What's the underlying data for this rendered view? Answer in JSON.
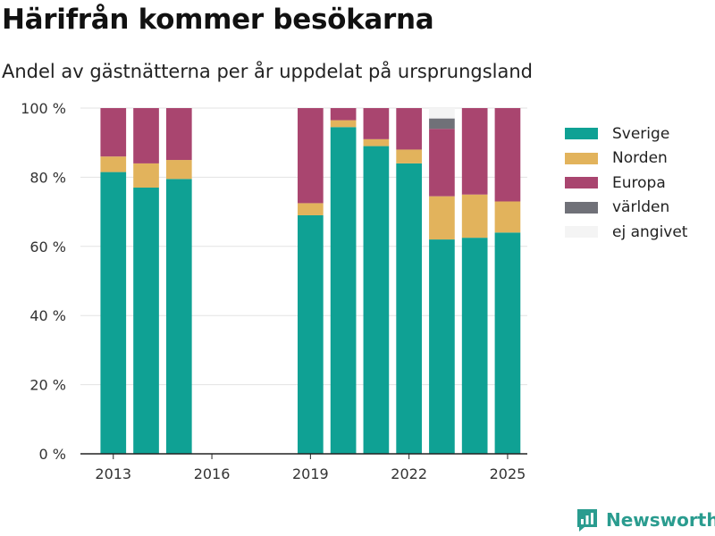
{
  "header": {
    "title": "Härifrån kommer besökarna",
    "subtitle": "Andel av gästnätterna per år uppdelat på ursprungsland"
  },
  "brand": {
    "name": "Newsworthy",
    "icon": "chart-logo-icon",
    "color": "#2a9c8f"
  },
  "chart_data": {
    "type": "bar",
    "stacked": true,
    "title": "Härifrån kommer besökarna",
    "subtitle": "Andel av gästnätterna per år uppdelat på ursprungsland",
    "xlabel": "",
    "ylabel": "",
    "xlim": [
      2012,
      2025.6
    ],
    "ylim": [
      0,
      100
    ],
    "grid": true,
    "legend_position": "right",
    "x_ticks": [
      2013,
      2016,
      2019,
      2022,
      2025
    ],
    "y_ticks": [
      0,
      20,
      40,
      60,
      80,
      100
    ],
    "y_tick_labels": [
      "0 %",
      "20 %",
      "40 %",
      "60 %",
      "80 %",
      "100 %"
    ],
    "x": [
      2013,
      2014,
      2015,
      2019,
      2020,
      2021,
      2022,
      2023,
      2024,
      2025
    ],
    "series": [
      {
        "name": "Sverige",
        "color": "#0fa194",
        "values": [
          81.5,
          77,
          79.5,
          69,
          94.5,
          89,
          84,
          62,
          62.5,
          64
        ]
      },
      {
        "name": "Norden",
        "color": "#e2b35c",
        "values": [
          4.5,
          7,
          5.5,
          3.5,
          2,
          2,
          4,
          12.5,
          12.5,
          9
        ]
      },
      {
        "name": "Europa",
        "color": "#a9456f",
        "values": [
          14,
          16,
          15,
          27.5,
          3.5,
          9,
          12,
          19.5,
          25,
          27
        ]
      },
      {
        "name": "världen",
        "color": "#707178",
        "values": [
          0,
          0,
          0,
          0,
          0,
          0,
          0,
          3,
          0,
          0
        ]
      },
      {
        "name": "ej angivet",
        "color": "#f4f4f4",
        "values": [
          0,
          0,
          0,
          0,
          0,
          0,
          0,
          3,
          0,
          0
        ]
      }
    ]
  }
}
